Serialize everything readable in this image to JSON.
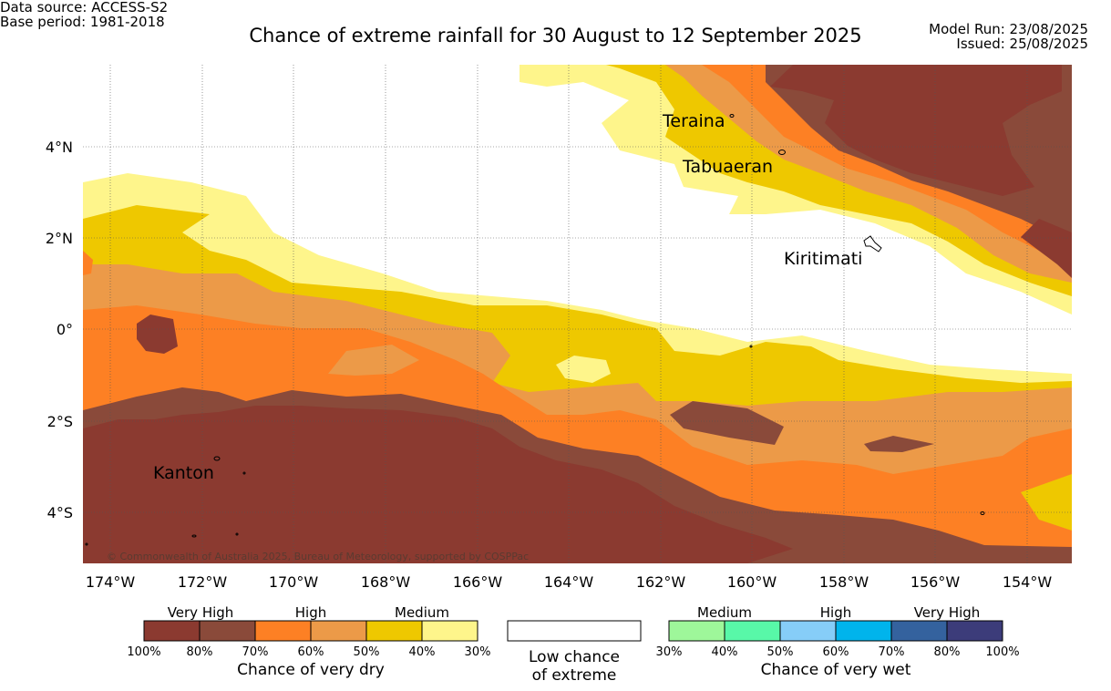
{
  "header": {
    "data_source": "Data source: ACCESS-S2",
    "base_period": "Base period: 1981-2018",
    "title": "Chance of extreme rainfall for 30 August to 12 September 2025",
    "model_run": "Model Run: 23/08/2025",
    "issued": "Issued: 25/08/2025"
  },
  "map": {
    "lon_labels": [
      "174°W",
      "172°W",
      "170°W",
      "168°W",
      "166°W",
      "164°W",
      "162°W",
      "160°W",
      "158°W",
      "156°W",
      "154°W"
    ],
    "lat_labels": [
      "4°N",
      "2°N",
      "0°",
      "2°S",
      "4°S"
    ],
    "places": [
      "Teraina",
      "Tabuaeran",
      "Kiritimati",
      "Kanton"
    ],
    "copyright": "© Commonwealth of Australia 2025, Bureau of Meteorology, supported by COSPPac"
  },
  "legend": {
    "dry": {
      "groups": [
        "Very High",
        "High",
        "Medium"
      ],
      "colors": [
        "#8b3a30",
        "#8a4a3a",
        "#fd8024",
        "#ec9a48",
        "#eec800",
        "#fef58b"
      ],
      "ticks": [
        "100%",
        "80%",
        "70%",
        "60%",
        "50%",
        "40%",
        "30%"
      ],
      "title": "Chance of very dry"
    },
    "low": {
      "line1": "Low chance",
      "line2": "of extreme"
    },
    "wet": {
      "groups": [
        "Medium",
        "High",
        "Very High"
      ],
      "colors": [
        "#9ef79a",
        "#58f8a8",
        "#86cdf8",
        "#00b4ec",
        "#34629e",
        "#3c3c7a"
      ],
      "ticks": [
        "30%",
        "40%",
        "50%",
        "60%",
        "70%",
        "80%",
        "100%"
      ],
      "title": "Chance of very wet"
    }
  }
}
